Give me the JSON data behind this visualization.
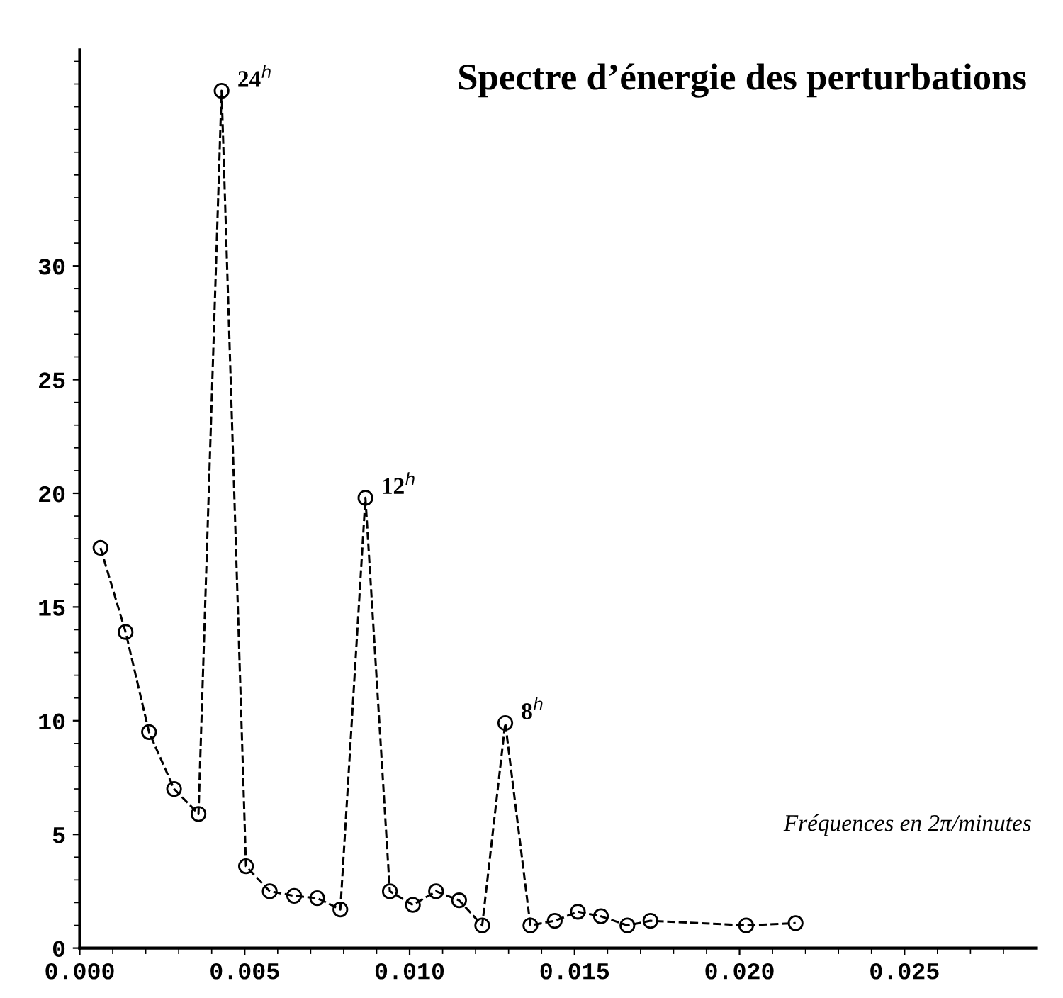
{
  "chart_data": {
    "type": "line",
    "title": "Spectre d’énergie des perturbations",
    "xlabel": "Fréquences en 2π/minutes",
    "x": [
      0.00063,
      0.00139,
      0.0021,
      0.00286,
      0.0036,
      0.0043,
      0.00504,
      0.00576,
      0.0065,
      0.0072,
      0.0079,
      0.00866,
      0.0094,
      0.0101,
      0.0108,
      0.0115,
      0.0122,
      0.0129,
      0.01366,
      0.0144,
      0.0151,
      0.0158,
      0.0166,
      0.0173,
      0.0202,
      0.0217
    ],
    "values": [
      17.6,
      13.9,
      9.5,
      7.0,
      5.9,
      37.7,
      3.6,
      2.5,
      2.3,
      2.2,
      1.7,
      19.8,
      2.5,
      1.9,
      2.5,
      2.1,
      1.0,
      9.9,
      1.0,
      1.2,
      1.6,
      1.4,
      1.0,
      1.2,
      1.0,
      1.1
    ],
    "color": "#000000",
    "marker": "circle",
    "line_style": "dashed",
    "grid": false,
    "legend": false,
    "xlim": [
      0,
      0.029
    ],
    "xticks": [
      {
        "value": 0,
        "label": "0.000"
      },
      0.005,
      {
        "value": 0.01,
        "label": "0.010"
      },
      0.015,
      {
        "value": 0.02,
        "label": "0.020"
      },
      0.025
    ],
    "ylim": [
      0,
      39.5
    ],
    "yticks": [
      0,
      5,
      10,
      15,
      20,
      25,
      30
    ],
    "annotations": [
      {
        "text": "24$^{h}$",
        "x": 0.0043,
        "y": 37.7
      },
      {
        "text": "12$^{h}$",
        "x": 0.00866,
        "y": 19.8
      },
      {
        "text": "8$^{h}$",
        "x": 0.0129,
        "y": 9.9
      }
    ]
  }
}
